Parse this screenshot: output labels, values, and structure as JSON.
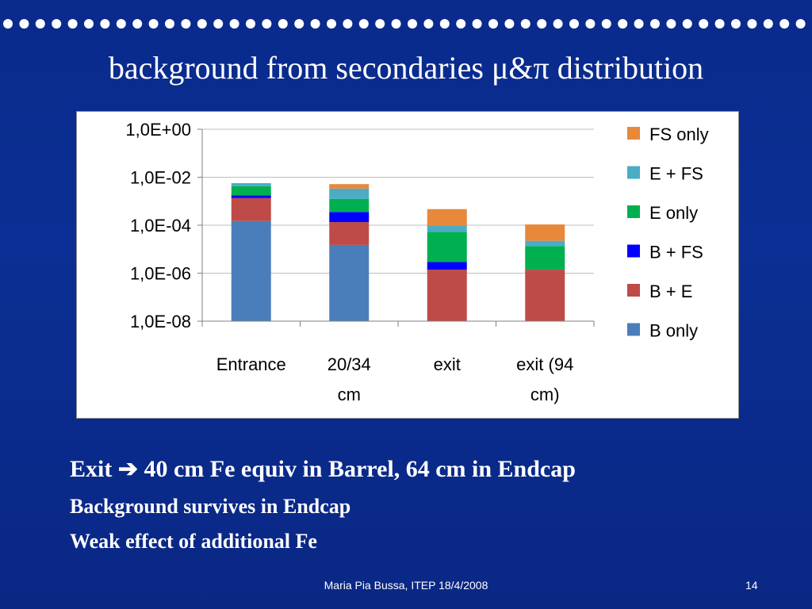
{
  "slide": {
    "title": "background from secondaries μ&π distribution",
    "bullets": {
      "main_prefix": "Exit",
      "main_suffix": "40  cm Fe equiv in Barrel, 64 cm in Endcap",
      "arrow_icon": "arrow-right-icon",
      "line2": "Background survives in Endcap",
      "line3": "Weak effect of  additional Fe"
    },
    "footer": "Maria Pia Bussa,  ITEP 18/4/2008",
    "page_number": "14"
  },
  "colors": {
    "background": "#0b2f94",
    "B only": "#4a7ebb",
    "B + E": "#be4b48",
    "B + FS": "#0000ff",
    "E only": "#00b050",
    "E + FS": "#4bacc6",
    "FS only": "#e8883a"
  },
  "chart_data": {
    "type": "bar",
    "stacked": true,
    "y_scale": "log",
    "categories": [
      "Entrance",
      "20/34 cm",
      "exit",
      "exit (94 cm)"
    ],
    "ylim": [
      1e-08,
      1
    ],
    "yticks": [
      1e-08,
      1e-06,
      0.0001,
      0.01,
      1
    ],
    "ytick_labels": [
      "1,0E-08",
      "1,0E-06",
      "1,0E-04",
      "1,0E-02",
      "1,0E+00"
    ],
    "legend_position": "right",
    "grid": true,
    "series": [
      {
        "name": "B only",
        "values": [
          0.00015,
          1.5e-05,
          0,
          0
        ]
      },
      {
        "name": "B + E",
        "values": [
          0.0012,
          0.00012,
          1.4e-06,
          1.4e-06
        ]
      },
      {
        "name": "B + FS",
        "values": [
          0.0004,
          0.00022,
          1.5e-06,
          0
        ]
      },
      {
        "name": "E only",
        "values": [
          0.0025,
          0.0009,
          5e-05,
          1.2e-05
        ]
      },
      {
        "name": "E + FS",
        "values": [
          0.0014,
          0.0021,
          4.5e-05,
          9e-06
        ]
      },
      {
        "name": "FS only",
        "values": [
          0,
          0.0018,
          0.00037,
          8.5e-05
        ]
      }
    ]
  }
}
